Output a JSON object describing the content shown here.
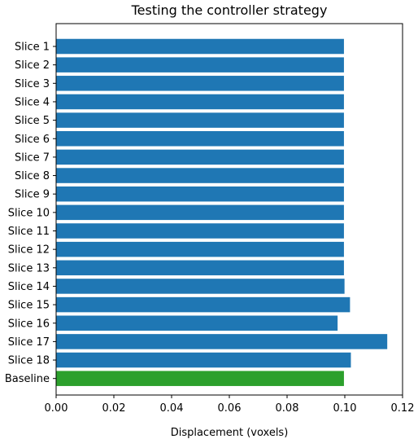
{
  "chart_data": {
    "type": "bar",
    "orientation": "horizontal",
    "title": "Testing the controller strategy",
    "xlabel": "Displacement (voxels)",
    "ylabel": "",
    "xlim": [
      0.0,
      0.12
    ],
    "xticks": [
      "0.00",
      "0.02",
      "0.04",
      "0.06",
      "0.08",
      "0.10",
      "0.12"
    ],
    "grid": false,
    "categories": [
      "Slice 1",
      "Slice 2",
      "Slice 3",
      "Slice 4",
      "Slice 5",
      "Slice 6",
      "Slice 7",
      "Slice 8",
      "Slice 9",
      "Slice 10",
      "Slice 11",
      "Slice 12",
      "Slice 13",
      "Slice 14",
      "Slice 15",
      "Slice 16",
      "Slice 17",
      "Slice 18",
      "Baseline"
    ],
    "values": [
      0.0997,
      0.0997,
      0.0997,
      0.0997,
      0.0997,
      0.0997,
      0.0997,
      0.0997,
      0.0997,
      0.0997,
      0.0997,
      0.0997,
      0.0997,
      0.0999,
      0.1018,
      0.0975,
      0.1147,
      0.1021,
      0.0997
    ],
    "colors": [
      "#1f77b4",
      "#1f77b4",
      "#1f77b4",
      "#1f77b4",
      "#1f77b4",
      "#1f77b4",
      "#1f77b4",
      "#1f77b4",
      "#1f77b4",
      "#1f77b4",
      "#1f77b4",
      "#1f77b4",
      "#1f77b4",
      "#1f77b4",
      "#1f77b4",
      "#1f77b4",
      "#1f77b4",
      "#1f77b4",
      "#2ca02c"
    ]
  }
}
